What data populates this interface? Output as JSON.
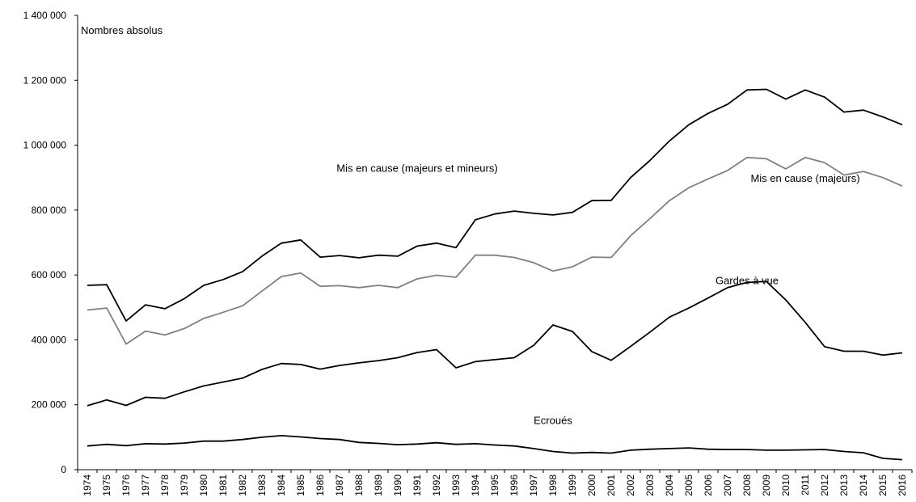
{
  "chart_data": {
    "type": "line",
    "ylabel": "Nombres absolus",
    "ylim": [
      0,
      1400000
    ],
    "yticks": [
      0,
      200000,
      400000,
      600000,
      800000,
      1000000,
      1200000,
      1400000
    ],
    "ytick_labels": [
      "0",
      "200 000",
      "400 000",
      "600 000",
      "800 000",
      "1 000 000",
      "1 200 000",
      "1 400 000"
    ],
    "grid": false,
    "legend": "none",
    "x": [
      "1974",
      "1975",
      "1976",
      "1977",
      "1978",
      "1979",
      "1980",
      "1981",
      "1982",
      "1983",
      "1984",
      "1985",
      "1986",
      "1987",
      "1988",
      "1989",
      "1990",
      "1991",
      "1992",
      "1993",
      "1994",
      "1995",
      "1996",
      "1997",
      "1998",
      "1999",
      "2000",
      "2001",
      "2002",
      "2003",
      "2004",
      "2005",
      "2006",
      "2007",
      "2008",
      "2009",
      "2010",
      "2011",
      "2012",
      "2013",
      "2014",
      "2015",
      "2016"
    ],
    "series": [
      {
        "name": "Mis en cause (majeurs et mineurs)",
        "color": "#000000",
        "values": [
          568000,
          570000,
          458000,
          508000,
          496000,
          527000,
          568000,
          586000,
          610000,
          658000,
          698000,
          708000,
          655000,
          660000,
          653000,
          661000,
          658000,
          689000,
          698000,
          684000,
          770000,
          788000,
          797000,
          790000,
          785000,
          793000,
          829000,
          830000,
          900000,
          953000,
          1013000,
          1063000,
          1098000,
          1126000,
          1170000,
          1172000,
          1142000,
          1170000,
          1148000,
          1102000,
          1108000,
          1087000,
          1063000
        ]
      },
      {
        "name": "Mis en cause (majeurs)",
        "color": "#808080",
        "values": [
          492000,
          498000,
          387000,
          427000,
          415000,
          435000,
          466000,
          485000,
          505000,
          550000,
          595000,
          606000,
          565000,
          567000,
          561000,
          568000,
          561000,
          588000,
          599000,
          593000,
          661000,
          661000,
          654000,
          638000,
          612000,
          625000,
          655000,
          654000,
          721000,
          774000,
          829000,
          869000,
          896000,
          922000,
          962000,
          958000,
          927000,
          962000,
          946000,
          908000,
          919000,
          900000,
          874000
        ]
      },
      {
        "name": "Gardes à vue",
        "color": "#000000",
        "values": [
          197000,
          215000,
          198000,
          223000,
          220000,
          240000,
          258000,
          270000,
          282000,
          309000,
          327000,
          324000,
          310000,
          321000,
          329000,
          336000,
          345000,
          361000,
          370000,
          314000,
          333000,
          339000,
          345000,
          383000,
          446000,
          426000,
          364000,
          337000,
          380000,
          424000,
          470000,
          498000,
          529000,
          561000,
          577000,
          580000,
          523000,
          454000,
          379000,
          365000,
          365000,
          353000,
          360000
        ]
      },
      {
        "name": "Ecroués",
        "color": "#000000",
        "values": [
          73000,
          78000,
          74000,
          80000,
          79000,
          82000,
          88000,
          88000,
          93000,
          100000,
          105000,
          101000,
          96000,
          93000,
          84000,
          81000,
          77000,
          79000,
          83000,
          78000,
          80000,
          76000,
          73000,
          65000,
          56000,
          51000,
          53000,
          51000,
          60000,
          63000,
          65000,
          67000,
          63000,
          62000,
          62000,
          60000,
          60000,
          61000,
          62000,
          56000,
          52000,
          35000,
          31000
        ]
      }
    ],
    "annotations": [
      {
        "text": "Mis en cause (majeurs et mineurs)",
        "series": 0
      },
      {
        "text": "Mis en cause (majeurs)",
        "series": 1
      },
      {
        "text": "Gardes à vue",
        "series": 2
      },
      {
        "text": "Ecroués",
        "series": 3
      }
    ]
  }
}
